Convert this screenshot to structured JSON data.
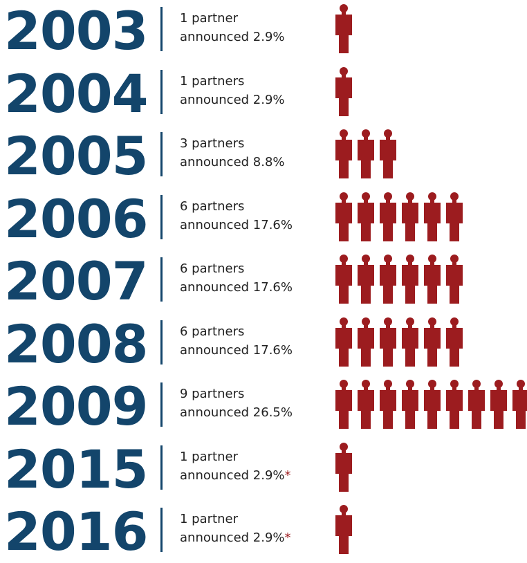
{
  "colors": {
    "year": "#13456b",
    "person": "#9c1c1f",
    "text": "#222222",
    "asterisk": "#9c1c1f"
  },
  "icons": {
    "person": "person-icon"
  },
  "chart_data": {
    "type": "bar",
    "categories": [
      "2003",
      "2004",
      "2005",
      "2006",
      "2007",
      "2008",
      "2009",
      "2015",
      "2016"
    ],
    "values": [
      1,
      1,
      3,
      6,
      6,
      6,
      9,
      1,
      1
    ],
    "percent": [
      "2.9%",
      "2.9%",
      "8.8%",
      "17.6%",
      "17.6%",
      "17.6%",
      "26.5%",
      "2.9%",
      "2.9%"
    ],
    "rows": [
      {
        "year": "2003",
        "line1": "1 partner",
        "line2": "announced 2.9%",
        "asterisk": "",
        "count": 1
      },
      {
        "year": "2004",
        "line1": "1 partners",
        "line2": "announced 2.9%",
        "asterisk": "",
        "count": 1
      },
      {
        "year": "2005",
        "line1": "3 partners",
        "line2": "announced 8.8%",
        "asterisk": "",
        "count": 3
      },
      {
        "year": "2006",
        "line1": "6 partners",
        "line2": "announced 17.6%",
        "asterisk": "",
        "count": 6
      },
      {
        "year": "2007",
        "line1": "6 partners",
        "line2": "announced 17.6%",
        "asterisk": "",
        "count": 6
      },
      {
        "year": "2008",
        "line1": "6 partners",
        "line2": "announced 17.6%",
        "asterisk": "",
        "count": 6
      },
      {
        "year": "2009",
        "line1": "9 partners",
        "line2": "announced 26.5%",
        "asterisk": "",
        "count": 9
      },
      {
        "year": "2015",
        "line1": "1 partner",
        "line2": "announced 2.9%",
        "asterisk": "*",
        "count": 1
      },
      {
        "year": "2016",
        "line1": "1 partner",
        "line2": "announced 2.9%",
        "asterisk": "*",
        "count": 1
      }
    ]
  }
}
